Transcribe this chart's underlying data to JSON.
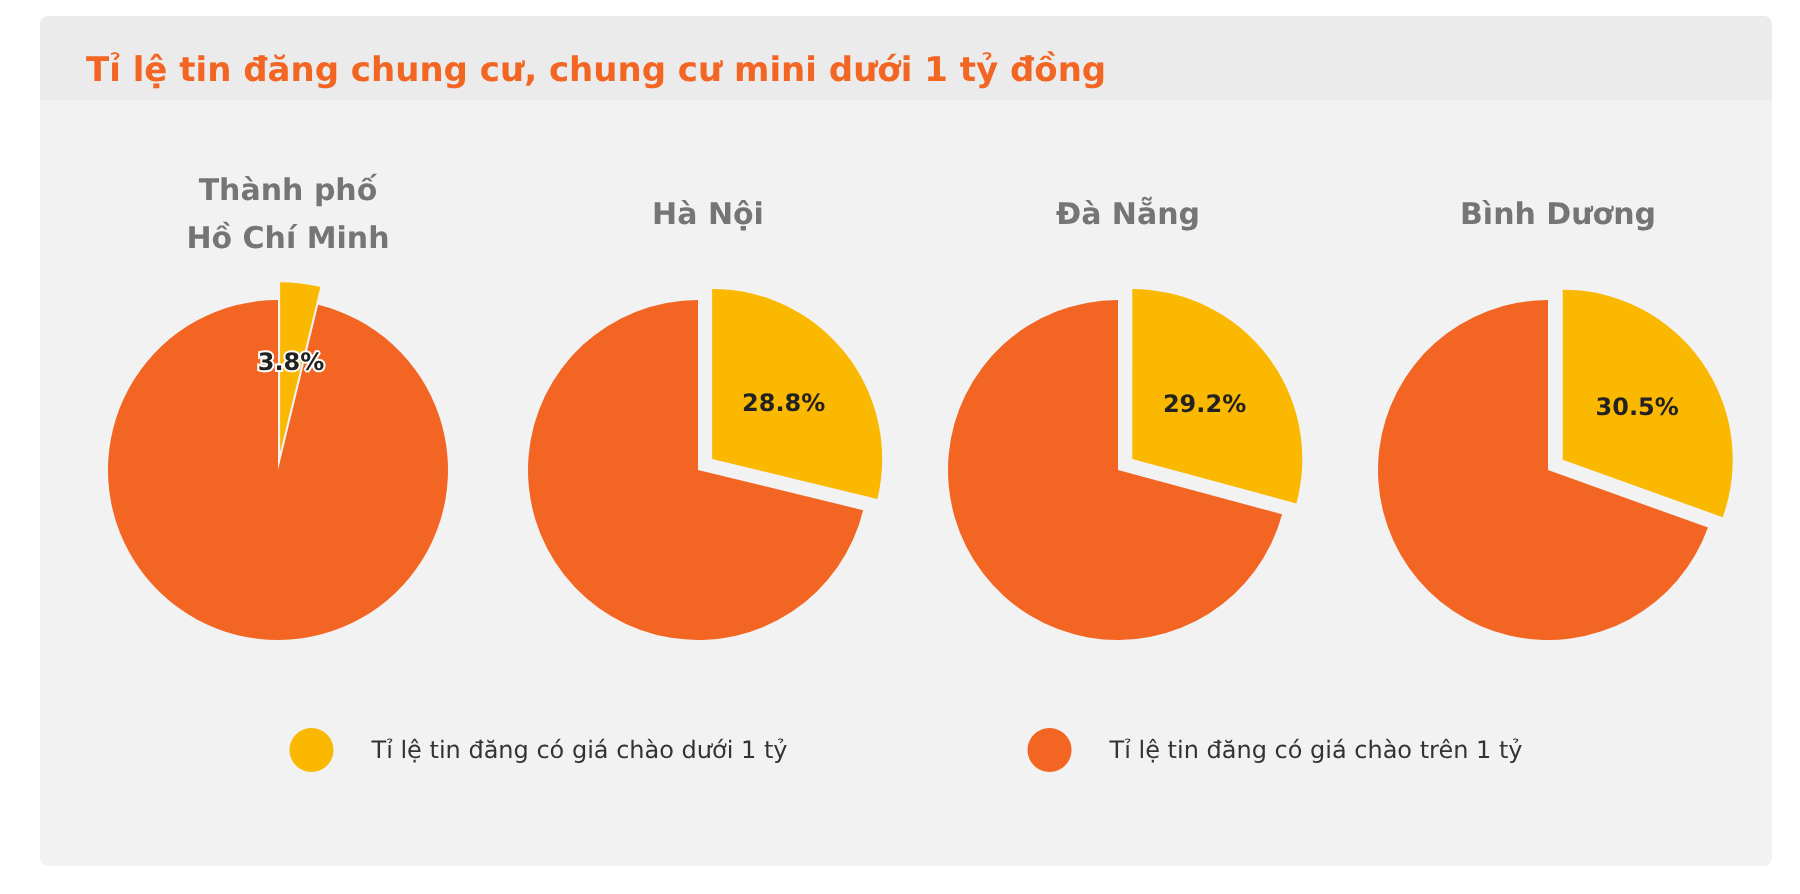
{
  "chart_data": [
    {
      "type": "pie",
      "title": "Tỉ lệ tin đăng chung cư, chung cư mini dưới 1 tỷ đồng",
      "subtitle": "Thành phố\nHồ Chí Minh",
      "categories": [
        "Tỉ lệ tin đăng có giá chào dưới 1 tỷ",
        "Tỉ lệ tin đăng có giá chào trên 1 tỷ"
      ],
      "values": [
        3.8,
        96.2
      ],
      "colors": [
        "#fbb800",
        "#f26522"
      ],
      "value_labels": [
        "3.8%",
        null
      ],
      "legend": "bottom"
    },
    {
      "type": "pie",
      "subtitle": "Hà Nội",
      "values": [
        28.8,
        71.2
      ],
      "colors": [
        "#fbb800",
        "#f26522"
      ],
      "value_labels": [
        "28.8%",
        null
      ]
    },
    {
      "type": "pie",
      "subtitle": "Đà Nẵng",
      "values": [
        29.2,
        70.8
      ],
      "colors": [
        "#fbb800",
        "#f26522"
      ],
      "value_labels": [
        "29.2%",
        null
      ]
    },
    {
      "type": "pie",
      "subtitle": "Bình Dương",
      "values": [
        30.5,
        69.5
      ],
      "colors": [
        "#fbb800",
        "#f26522"
      ],
      "value_labels": [
        "30.5%",
        null
      ]
    }
  ]
}
